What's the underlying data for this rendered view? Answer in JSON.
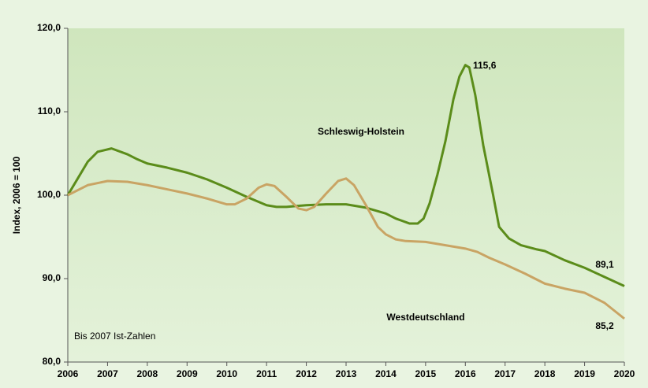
{
  "chart_data": {
    "type": "line",
    "ylabel": "Index, 2006 = 100",
    "annotations": [
      "115,6",
      "89,1",
      "85,2",
      "Schleswig-Holstein",
      "Westdeutschland",
      "Bis 2007 Ist-Zahlen"
    ],
    "xlim": [
      2006,
      2020
    ],
    "xticks": [
      2006,
      2007,
      2008,
      2009,
      2010,
      2011,
      2012,
      2013,
      2014,
      2015,
      2016,
      2017,
      2018,
      2019,
      2020
    ],
    "ylim": [
      80,
      120
    ],
    "yticks": [
      {
        "value": 80,
        "label": "80,0"
      },
      {
        "value": 90,
        "label": "90,0"
      },
      {
        "value": 100,
        "label": "100,0"
      },
      {
        "value": 110,
        "label": "110,0"
      },
      {
        "value": 120,
        "label": "120,0"
      }
    ],
    "grid": false,
    "series": [
      {
        "name": "Schleswig-Holstein",
        "color": "#5b8c1a",
        "x": [
          2006,
          2006.25,
          2006.5,
          2006.75,
          2007.1,
          2007.5,
          2007.75,
          2008,
          2008.5,
          2009,
          2009.5,
          2010,
          2010.5,
          2011,
          2011.25,
          2011.5,
          2012,
          2012.5,
          2013,
          2013.5,
          2014,
          2014.25,
          2014.6,
          2014.8,
          2014.95,
          2015.1,
          2015.3,
          2015.5,
          2015.7,
          2015.85,
          2016,
          2016.1,
          2016.25,
          2016.45,
          2016.7,
          2016.85,
          2017.1,
          2017.4,
          2017.8,
          2018,
          2018.5,
          2019,
          2019.5,
          2020
        ],
        "values": [
          100,
          102,
          104,
          105.2,
          105.6,
          104.9,
          104.3,
          103.8,
          103.3,
          102.7,
          101.9,
          100.9,
          99.8,
          98.8,
          98.6,
          98.6,
          98.8,
          98.9,
          98.9,
          98.5,
          97.8,
          97.2,
          96.6,
          96.6,
          97.2,
          99,
          102.5,
          106.5,
          111.5,
          114.2,
          115.6,
          115.3,
          112,
          106,
          100,
          96.2,
          94.8,
          94,
          93.5,
          93.3,
          92.2,
          91.3,
          90.2,
          89.1
        ]
      },
      {
        "name": "Westdeutschland",
        "color": "#c9a464",
        "x": [
          2006,
          2006.5,
          2007,
          2007.5,
          2008,
          2008.5,
          2009,
          2009.5,
          2010,
          2010.2,
          2010.5,
          2010.8,
          2011,
          2011.2,
          2011.5,
          2011.8,
          2012,
          2012.2,
          2012.5,
          2012.8,
          2013,
          2013.2,
          2013.5,
          2013.8,
          2014,
          2014.25,
          2014.5,
          2015,
          2015.5,
          2016,
          2016.3,
          2016.6,
          2017,
          2017.5,
          2018,
          2018.5,
          2019,
          2019.5,
          2020
        ],
        "values": [
          100,
          101.2,
          101.7,
          101.6,
          101.2,
          100.7,
          100.2,
          99.6,
          98.9,
          98.9,
          99.6,
          100.9,
          101.3,
          101.1,
          99.8,
          98.4,
          98.2,
          98.6,
          100.2,
          101.7,
          102,
          101.2,
          98.8,
          96.2,
          95.3,
          94.7,
          94.5,
          94.4,
          94,
          93.6,
          93.2,
          92.5,
          91.7,
          90.6,
          89.4,
          88.8,
          88.3,
          87.1,
          85.2
        ]
      }
    ]
  }
}
